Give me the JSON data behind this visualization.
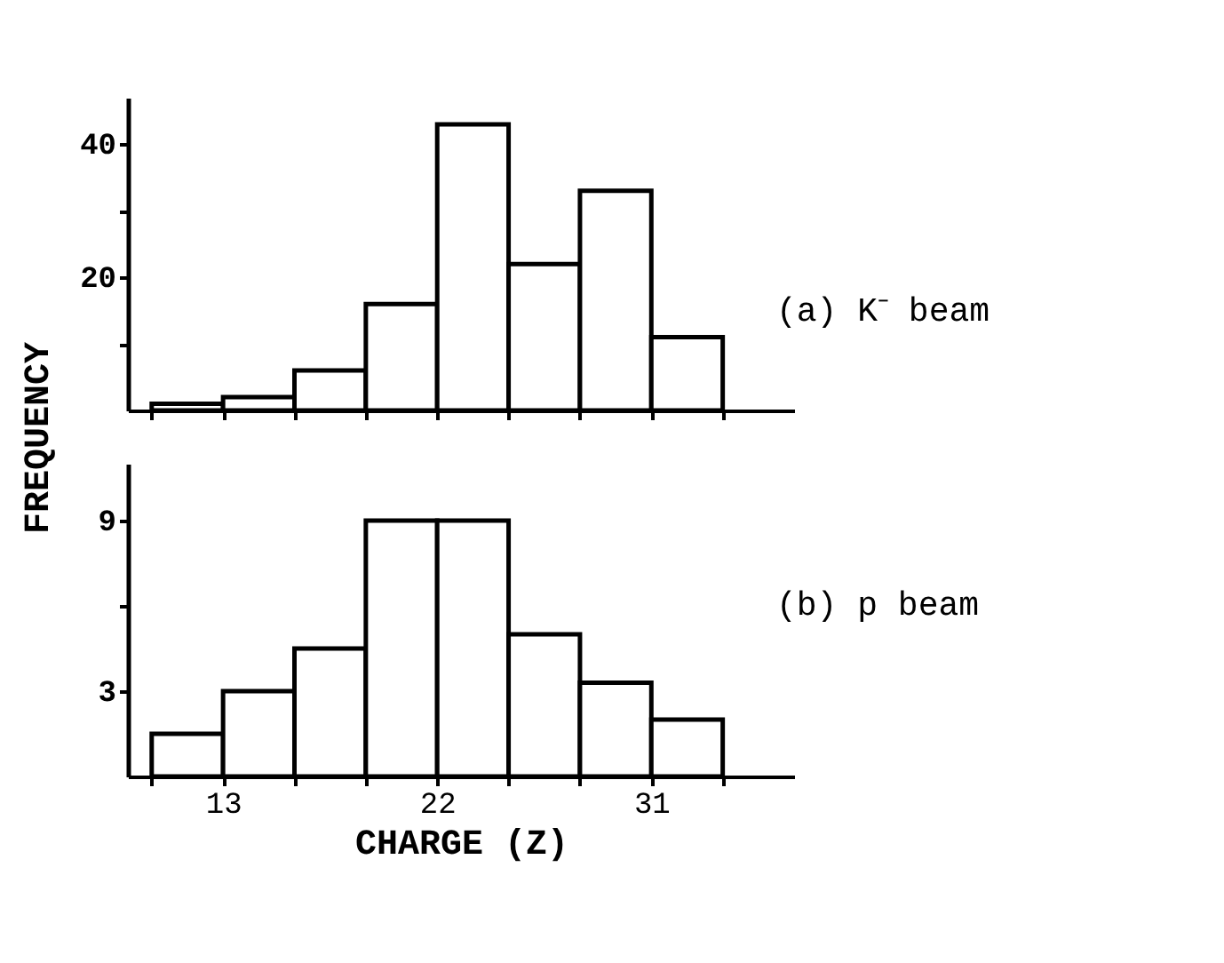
{
  "chart_data": [
    {
      "type": "histogram",
      "ylabel": "FREQUENCY",
      "annotations": [
        "(a) K⁻ beam"
      ],
      "bins": [
        10,
        13,
        16,
        19,
        22,
        25,
        28,
        31,
        34
      ],
      "values": [
        1,
        2,
        6,
        16,
        43,
        22,
        33,
        11
      ],
      "xlim": [
        9,
        37
      ],
      "xticks": [
        {
          "value": 10,
          "label": null
        },
        {
          "value": 13,
          "label": null
        },
        {
          "value": 16,
          "label": null
        },
        {
          "value": 19,
          "label": null
        },
        {
          "value": 22,
          "label": null
        },
        {
          "value": 25,
          "label": null
        },
        {
          "value": 28,
          "label": null
        },
        {
          "value": 31,
          "label": null
        },
        {
          "value": 34,
          "label": null
        }
      ],
      "ylim": [
        0,
        47
      ],
      "yticks": [
        {
          "value": 10,
          "label": null
        },
        20,
        {
          "value": 30,
          "label": null
        },
        40
      ],
      "tick_labels": "y",
      "grid": false
    },
    {
      "type": "histogram",
      "xlabel": "CHARGE (Z)",
      "annotations": [
        "(b) p beam"
      ],
      "bins": [
        10,
        13,
        16,
        19,
        22,
        25,
        28,
        31,
        34
      ],
      "values": [
        1.5,
        3,
        4.5,
        9,
        9,
        5,
        3.3,
        2
      ],
      "xlim": [
        9,
        37
      ],
      "xticks": [
        {
          "value": 10,
          "label": null
        },
        13,
        {
          "value": 16,
          "label": null
        },
        {
          "value": 19,
          "label": null
        },
        22,
        {
          "value": 25,
          "label": null
        },
        {
          "value": 28,
          "label": null
        },
        31,
        {
          "value": 34,
          "label": null
        }
      ],
      "ylim": [
        0,
        11
      ],
      "yticks": [
        3,
        {
          "value": 6,
          "label": null
        },
        9
      ],
      "grid": false
    }
  ]
}
